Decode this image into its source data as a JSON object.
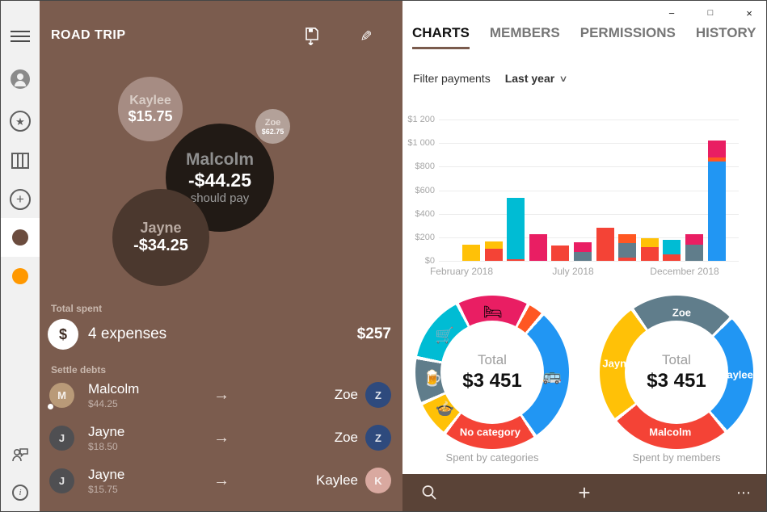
{
  "window": {
    "minimize": "−",
    "maximize": "□",
    "close": "×"
  },
  "icons": {
    "star": "★",
    "plus": "+",
    "info": "i",
    "pencil": "✎",
    "chevron_down": "∨",
    "arrow_right": "→",
    "more": "⋯",
    "add": "+",
    "currency": "$"
  },
  "sidebar": {
    "selected_group_color": "#6b4c3e",
    "second_group_color": "#FF9800"
  },
  "group_panel": {
    "title": "ROAD TRIP",
    "bubbles": [
      {
        "name": "Kaylee",
        "amount": "$15.75"
      },
      {
        "name": "Zoe",
        "amount": "$62.75"
      },
      {
        "name": "Malcolm",
        "amount": "-$44.25",
        "note": "should pay"
      },
      {
        "name": "Jayne",
        "amount": "-$34.25"
      }
    ],
    "total_spent": {
      "label": "Total spent",
      "expenses": "4 expenses",
      "amount": "$257"
    },
    "settle_debts": {
      "label": "Settle debts",
      "rows": [
        {
          "from": "Malcolm",
          "from_initial": "M",
          "from_avatar_color": "#b99a78",
          "amount": "$44.25",
          "to": "Zoe",
          "to_initial": "Z",
          "to_avatar_color": "#2e4a7d",
          "has_dot": true
        },
        {
          "from": "Jayne",
          "from_initial": "J",
          "from_avatar_color": "#4f4f52",
          "amount": "$18.50",
          "to": "Zoe",
          "to_initial": "Z",
          "to_avatar_color": "#2e4a7d",
          "has_dot": false
        },
        {
          "from": "Jayne",
          "from_initial": "J",
          "from_avatar_color": "#4f4f52",
          "amount": "$15.75",
          "to": "Kaylee",
          "to_initial": "K",
          "to_avatar_color": "#d9a9a0",
          "has_dot": false
        }
      ]
    }
  },
  "detail_panel": {
    "tabs": [
      {
        "label": "CHARTS",
        "active": true
      },
      {
        "label": "MEMBERS",
        "active": false
      },
      {
        "label": "PERMISSIONS",
        "active": false
      },
      {
        "label": "HISTORY",
        "active": false
      }
    ],
    "filter": {
      "label": "Filter payments",
      "value": "Last year"
    }
  },
  "chart_data": [
    {
      "type": "bar",
      "stacked": true,
      "ymax": 1200,
      "y_ticks": [
        {
          "v": 1200,
          "label": "$1 200"
        },
        {
          "v": 1000,
          "label": "$1 000"
        },
        {
          "v": 800,
          "label": "$800"
        },
        {
          "v": 600,
          "label": "$600"
        },
        {
          "v": 400,
          "label": "$400"
        },
        {
          "v": 200,
          "label": "$200"
        },
        {
          "v": 0,
          "label": "$0"
        }
      ],
      "x_axis_labels": [
        {
          "label": "February 2018",
          "at_bar": 0
        },
        {
          "label": "July 2018",
          "at_bar": 5
        },
        {
          "label": "December 2018",
          "at_bar": 10
        }
      ],
      "palette": {
        "amber": "#FFC107",
        "red": "#F44336",
        "cyan": "#00BCD4",
        "pink": "#E91E63",
        "gray": "#607D8B",
        "orange": "#FF5722",
        "blue": "#2196F3"
      },
      "bars": [
        {
          "month": "Feb 2018",
          "segments": [
            {
              "c": "amber",
              "v": 140
            }
          ]
        },
        {
          "month": "Mar 2018",
          "segments": [
            {
              "c": "red",
              "v": 100
            },
            {
              "c": "amber",
              "v": 65
            }
          ]
        },
        {
          "month": "Apr 2018",
          "segments": [
            {
              "c": "red",
              "v": 12
            },
            {
              "c": "cyan",
              "v": 520
            }
          ]
        },
        {
          "month": "May 2018",
          "segments": [
            {
              "c": "pink",
              "v": 228
            }
          ]
        },
        {
          "month": "Jun 2018",
          "segments": [
            {
              "c": "red",
              "v": 130
            }
          ]
        },
        {
          "month": "Jul 2018",
          "segments": [
            {
              "c": "gray",
              "v": 75
            },
            {
              "c": "pink",
              "v": 85
            }
          ]
        },
        {
          "month": "Aug 2018",
          "segments": [
            {
              "c": "red",
              "v": 278
            }
          ]
        },
        {
          "month": "Sep 2018",
          "segments": [
            {
              "c": "red",
              "v": 30
            },
            {
              "c": "gray",
              "v": 120
            },
            {
              "c": "orange",
              "v": 75
            }
          ]
        },
        {
          "month": "Oct 2018",
          "segments": [
            {
              "c": "red",
              "v": 115
            },
            {
              "c": "amber",
              "v": 75
            }
          ]
        },
        {
          "month": "Nov 2018",
          "segments": [
            {
              "c": "red",
              "v": 55
            },
            {
              "c": "cyan",
              "v": 120
            }
          ]
        },
        {
          "month": "Dec 2018",
          "segments": [
            {
              "c": "gray",
              "v": 140
            },
            {
              "c": "pink",
              "v": 85
            }
          ]
        },
        {
          "month": "Jan 2019",
          "segments": [
            {
              "c": "blue",
              "v": 845
            },
            {
              "c": "orange",
              "v": 30
            },
            {
              "c": "pink",
              "v": 145
            }
          ]
        }
      ]
    },
    {
      "type": "donut",
      "caption": "Spent by categories",
      "center_label": "Total",
      "center_value": "$3 451",
      "start_deg": -27,
      "segments": [
        {
          "name": "accommodation",
          "color": "#E91E63",
          "deg": 55,
          "icon": "🛏"
        },
        {
          "name": "small-category",
          "color": "#FF5722",
          "deg": 13
        },
        {
          "name": "transport",
          "color": "#2196F3",
          "deg": 105,
          "icon": "🚌"
        },
        {
          "name": "no-category",
          "color": "#F44336",
          "deg": 72,
          "label": "No category"
        },
        {
          "name": "food",
          "color": "#FFC107",
          "deg": 28,
          "icon": "🍲"
        },
        {
          "name": "drinks",
          "color": "#607D8B",
          "deg": 35,
          "icon": "🍺"
        },
        {
          "name": "groceries",
          "color": "#00BCD4",
          "deg": 52,
          "icon": "🛒"
        }
      ]
    },
    {
      "type": "donut",
      "caption": "Spent by members",
      "center_label": "Total",
      "center_value": "$3 451",
      "start_deg": -35,
      "segments": [
        {
          "name": "Zoe",
          "color": "#607D8B",
          "deg": 80,
          "label": "Zoe"
        },
        {
          "name": "Kaylee",
          "color": "#2196F3",
          "deg": 95,
          "label": "Kaylee"
        },
        {
          "name": "Malcolm",
          "color": "#F44336",
          "deg": 92,
          "label": "Malcolm"
        },
        {
          "name": "Jayne",
          "color": "#FFC107",
          "deg": 93,
          "label": "Jayne"
        }
      ]
    }
  ],
  "appbar": {
    "search": "search",
    "add": "+",
    "more": "⋯"
  }
}
